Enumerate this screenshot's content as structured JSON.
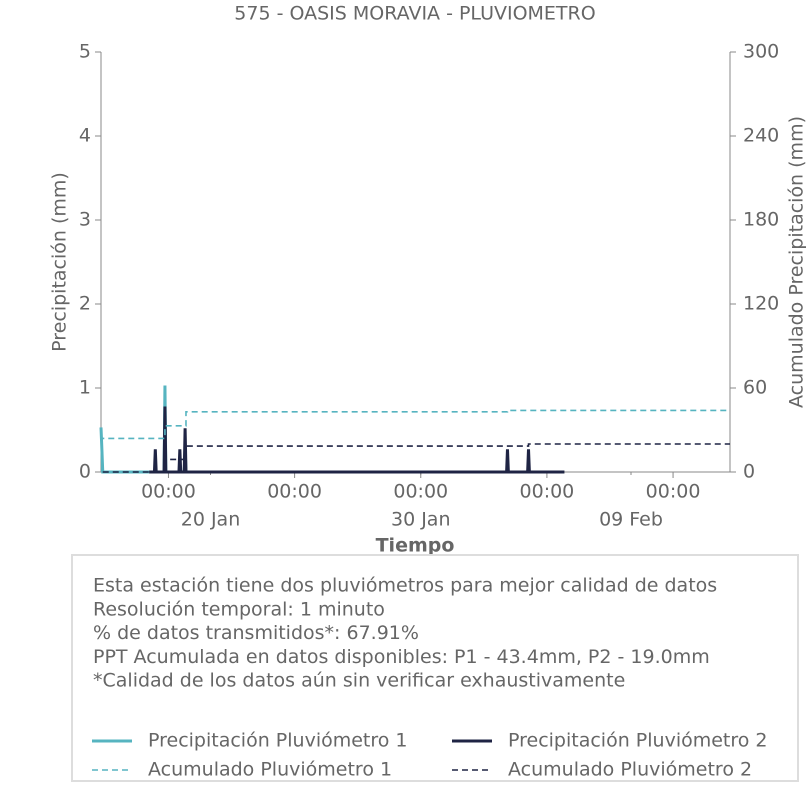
{
  "chart_data": {
    "type": "line",
    "title": "575 - OASIS MORAVIA - PLUVIOMETRO",
    "xlabel": "Tiempo",
    "ylabel": "Precipitación (mm)",
    "y2label": "Acumulado Precipitación (mm)",
    "xlim": [
      "14 Jan 19:00",
      "13 Feb 17:00"
    ],
    "xticks": [
      {
        "value": "18 Jan 00:00",
        "label": "00:00"
      },
      {
        "value": "24 Jan 00:00",
        "label": "00:00"
      },
      {
        "value": "30 Jan 00:00",
        "label": "00:00"
      },
      {
        "value": "05 Feb 00:00",
        "label": "00:00"
      },
      {
        "value": "11 Feb 00:00",
        "label": "00:00"
      }
    ],
    "xticks_major": [
      {
        "value": "20 Jan 00:00",
        "label": "20 Jan"
      },
      {
        "value": "30 Jan 00:00",
        "label": "30 Jan"
      },
      {
        "value": "09 Feb 00:00",
        "label": "09 Feb"
      }
    ],
    "ylim": [
      0,
      5
    ],
    "yticks": [
      0,
      1,
      2,
      3,
      4,
      5
    ],
    "y2lim": [
      0,
      300
    ],
    "y2ticks": [
      0,
      60,
      120,
      180,
      240,
      300
    ],
    "annotations": [
      "Esta estación tiene dos pluviómetros para mejor calidad de datos",
      "Resolución temporal: 1 minuto",
      "% de datos transmitidos*: 67.91%",
      "PPT Acumulada en datos disponibles: P1 - 43.4mm, P2 - 19.0mm",
      "*Calidad de los datos aún sin verificar exhaustivamente"
    ],
    "series": [
      {
        "name": "Precipitación Pluviómetro 1",
        "color": "#56b4c0",
        "style": "solid",
        "x": [
          "14 Jan 19:00",
          "14 Jan 20:00",
          "14 Jan 21:00",
          "17 Jan 19:00",
          "17 Jan 20:00",
          "17 Jan 21:00",
          "18 Jan 18:00",
          "18 Jan 19:00",
          "18 Jan 20:00"
        ],
        "values": [
          0.53,
          0.27,
          0,
          0,
          1.03,
          0,
          0,
          0.3,
          0
        ]
      },
      {
        "name": "Precipitación Pluviómetro 2",
        "color": "#1f2444",
        "style": "solid",
        "x": [
          "17 Jan 02:00",
          "17 Jan 08:00",
          "17 Jan 09:00",
          "17 Jan 10:00",
          "17 Jan 19:00",
          "17 Jan 20:00",
          "17 Jan 21:00",
          "18 Jan 12:00",
          "18 Jan 13:00",
          "18 Jan 14:00",
          "18 Jan 18:00",
          "18 Jan 19:00",
          "18 Jan 20:00",
          "03 Feb 02:00",
          "03 Feb 03:00",
          "03 Feb 04:00",
          "04 Feb 02:00",
          "04 Feb 03:00",
          "04 Feb 04:00",
          "05 Feb 20:00"
        ],
        "values": [
          0,
          0,
          0.27,
          0,
          0,
          0.78,
          0,
          0,
          0.27,
          0,
          0,
          0.52,
          0,
          0,
          0.27,
          0,
          0,
          0.27,
          0,
          0
        ]
      },
      {
        "name": "Acumulado Pluviómetro 1",
        "color": "#56b4c0",
        "style": "dashed",
        "axis": "y2",
        "x": [
          "14 Jan 20:00",
          "14 Jan 20:00",
          "17 Jan 20:00",
          "17 Jan 20:00",
          "18 Jan 20:00",
          "18 Jan 20:00",
          "03 Feb 03:00",
          "03 Feb 03:00",
          "13 Feb 17:00"
        ],
        "values": [
          0,
          24,
          24,
          33,
          33,
          43,
          43,
          44,
          44
        ]
      },
      {
        "name": "Acumulado Pluviómetro 2",
        "color": "#1f2444",
        "style": "dashed",
        "axis": "y2",
        "x": [
          "14 Jan 21:00",
          "17 Jan 20:00",
          "17 Jan 20:00",
          "18 Jan 20:00",
          "18 Jan 20:00",
          "04 Feb 03:00",
          "04 Feb 03:00",
          "13 Feb 17:00"
        ],
        "values": [
          0,
          0,
          9,
          9,
          18.5,
          18.5,
          20,
          20
        ]
      }
    ]
  }
}
